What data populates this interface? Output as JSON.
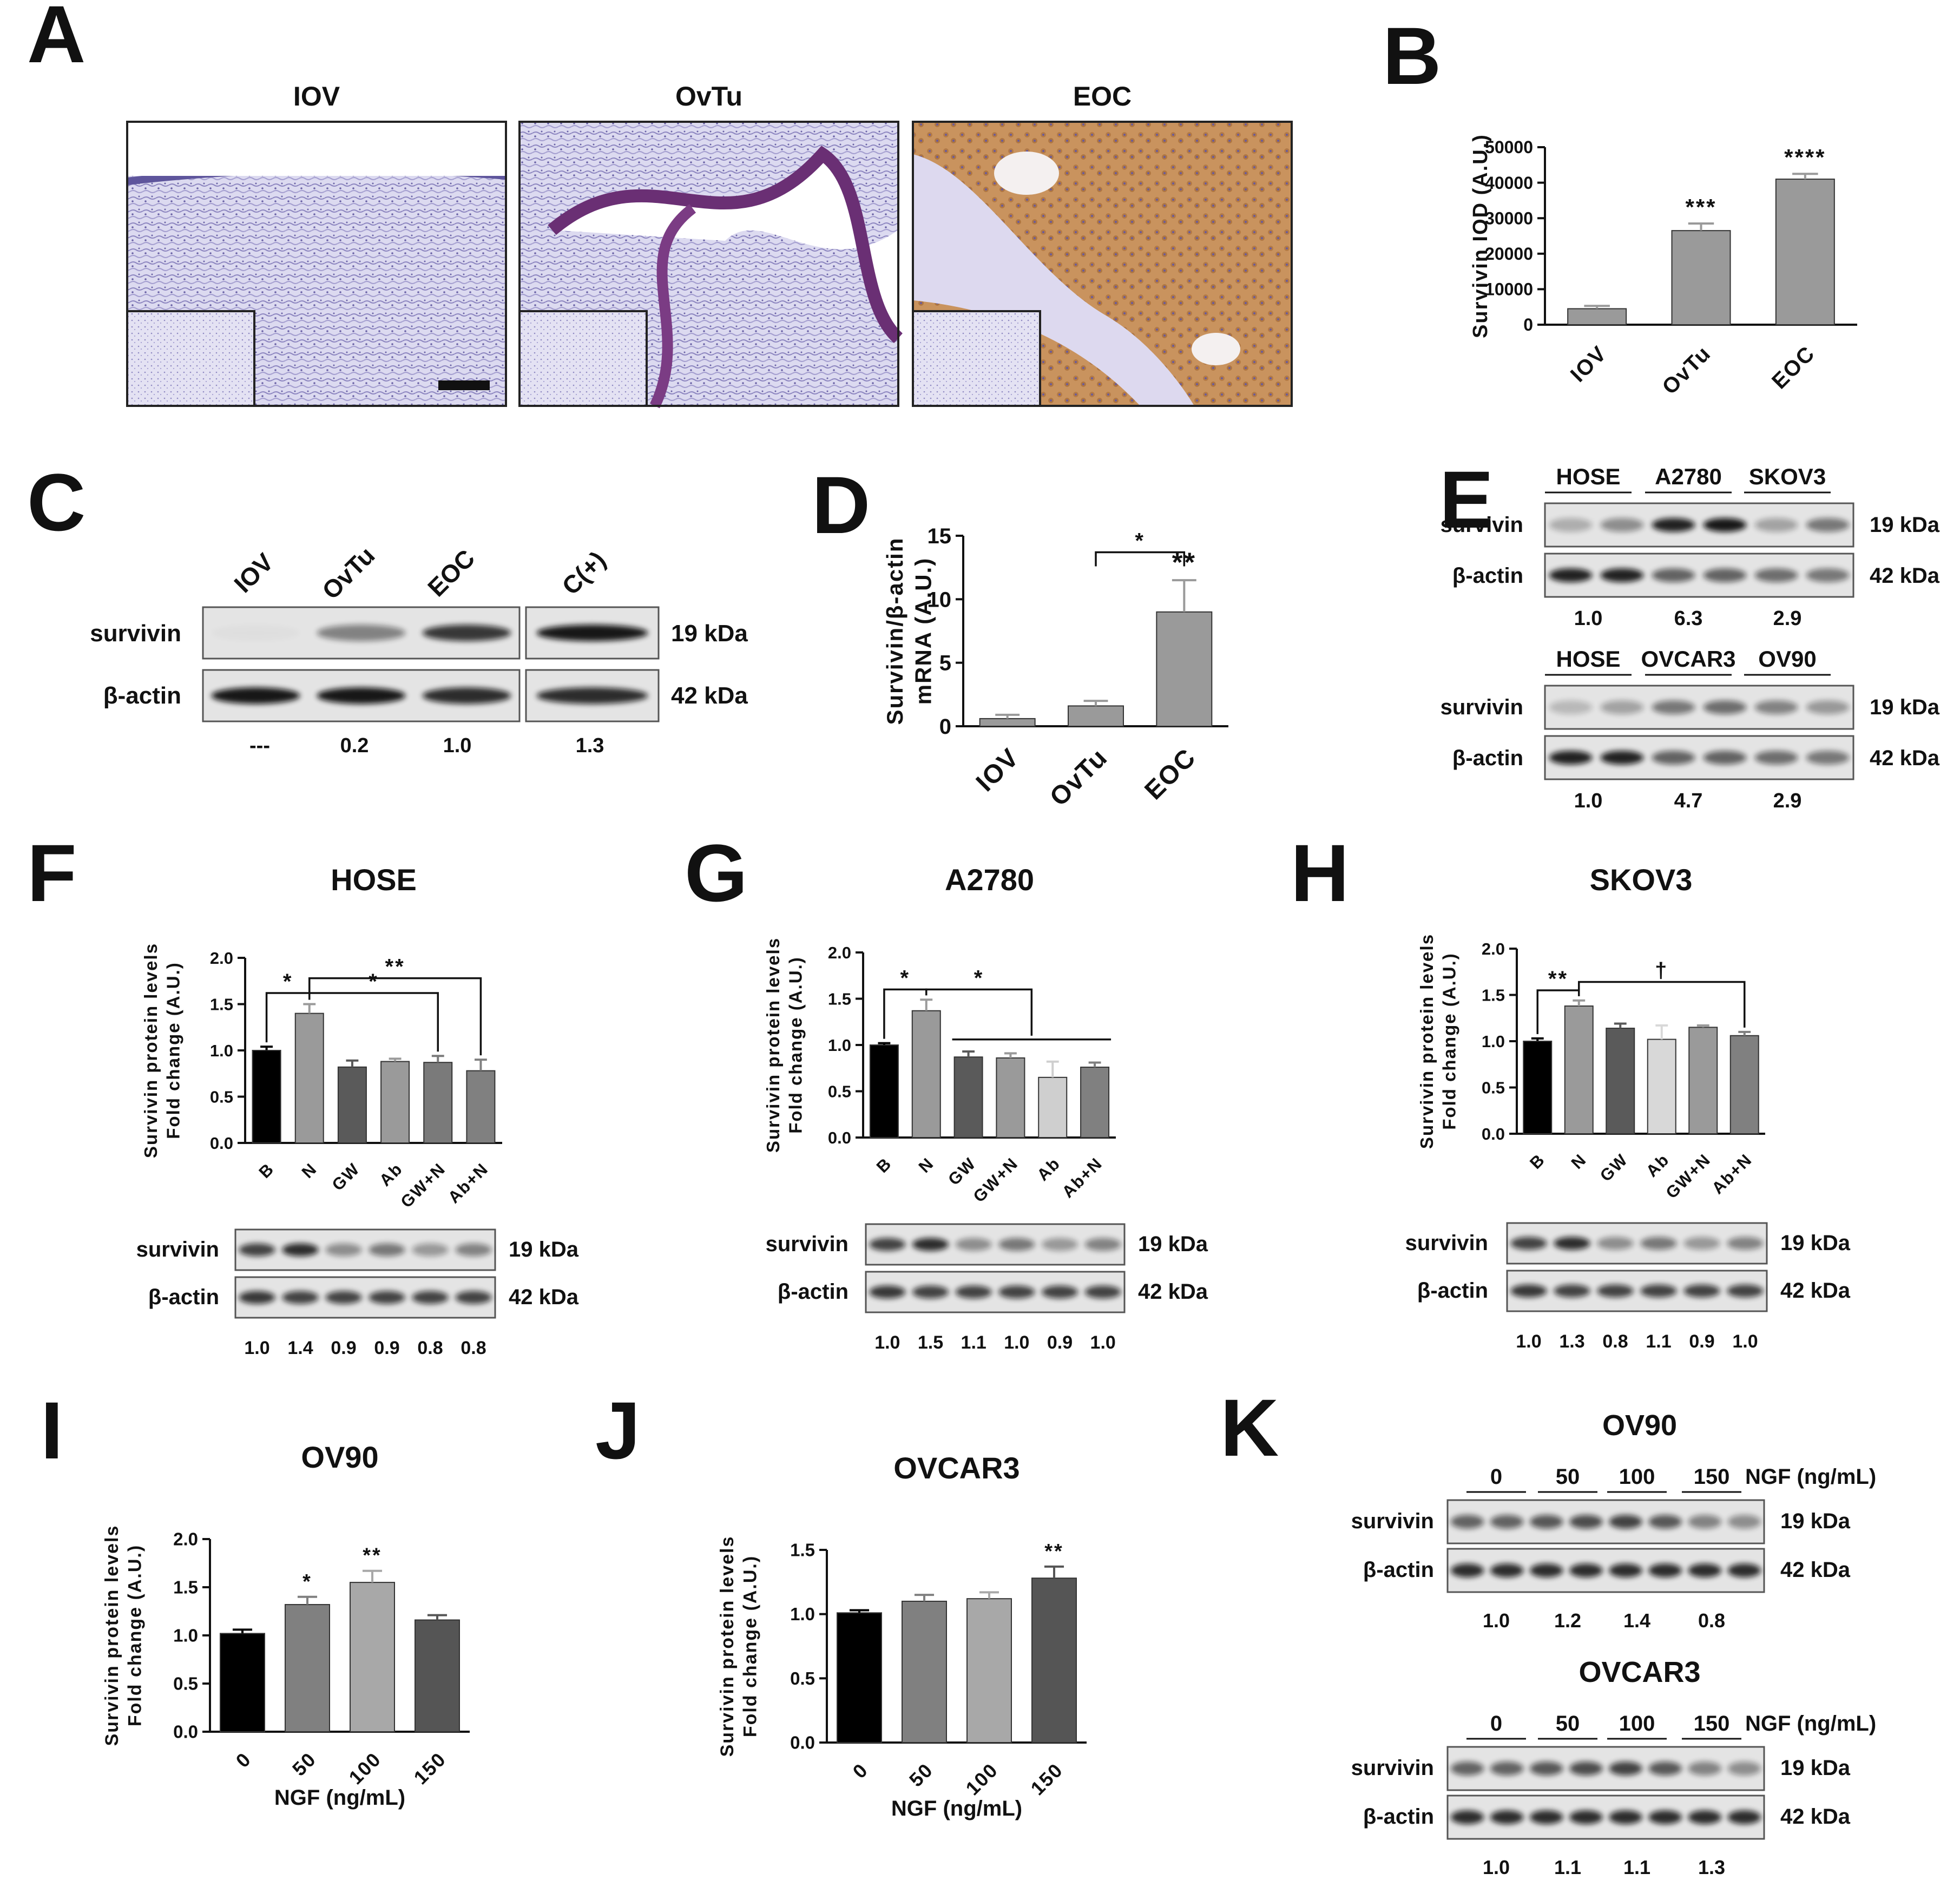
{
  "panel_letters": [
    "A",
    "B",
    "C",
    "D",
    "E",
    "F",
    "G",
    "H",
    "I",
    "J",
    "K"
  ],
  "histology": {
    "titles": [
      "IOV",
      "OvTu",
      "EOC"
    ],
    "colors": {
      "hematoxylin": "#6b5b9a",
      "dab": "#c58b52"
    }
  },
  "blots": {
    "C": {
      "lanes": [
        "IOV",
        "OvTu",
        "EOC",
        "C(+)"
      ],
      "quant": [
        "---",
        "0.2",
        "1.0",
        "1.3"
      ]
    },
    "E_top": {
      "groups": [
        "HOSE",
        "A2780",
        "SKOV3"
      ],
      "quant": [
        "1.0",
        "6.3",
        "2.9"
      ]
    },
    "E_bottom": {
      "groups": [
        "HOSE",
        "OVCAR3",
        "OV90"
      ],
      "quant": [
        "1.0",
        "4.7",
        "2.9"
      ]
    },
    "F": {
      "quant": [
        "1.0",
        "1.4",
        "0.9",
        "0.9",
        "0.8",
        "0.8"
      ]
    },
    "G": {
      "quant": [
        "1.0",
        "1.5",
        "1.1",
        "1.0",
        "0.9",
        "1.0"
      ]
    },
    "H": {
      "quant": [
        "1.0",
        "1.3",
        "0.8",
        "1.1",
        "0.9",
        "1.0"
      ]
    },
    "K_top": {
      "title": "OV90",
      "doses": [
        "0",
        "50",
        "100",
        "150"
      ],
      "quant": [
        "1.0",
        "1.2",
        "1.4",
        "0.8"
      ]
    },
    "K_bottom": {
      "title": "OVCAR3",
      "doses": [
        "0",
        "50",
        "100",
        "150"
      ],
      "quant": [
        "1.0",
        "1.1",
        "1.1",
        "1.3"
      ]
    },
    "labels": {
      "survivin": "survivin",
      "actin": "β-actin",
      "kda19": "19 kDa",
      "kda42": "42 kDa",
      "ngf": "NGF (ng/mL)"
    }
  },
  "chart_data": [
    {
      "panel": "B",
      "type": "bar",
      "categories": [
        "IOV",
        "OvTu",
        "EOC"
      ],
      "values": [
        4500,
        26500,
        41000
      ],
      "errors": [
        800,
        2000,
        1500
      ],
      "ylabel": "Survivin IOD (A.U.)",
      "ylim": [
        0,
        50000
      ],
      "yticks": [
        0,
        10000,
        20000,
        30000,
        40000,
        50000
      ],
      "significance": [
        "",
        "***",
        "****"
      ],
      "colors": [
        "#9a9a9a",
        "#9a9a9a",
        "#9a9a9a"
      ]
    },
    {
      "panel": "D",
      "type": "bar",
      "categories": [
        "IOV",
        "OvTu",
        "EOC"
      ],
      "values": [
        0.6,
        1.6,
        9.0
      ],
      "errors": [
        0.3,
        0.4,
        2.5
      ],
      "ylabel": [
        "Survivin/β-actin",
        "mRNA (A.U.)"
      ],
      "ylim": [
        0,
        15
      ],
      "yticks": [
        0,
        5,
        10,
        15
      ],
      "significance": [
        "",
        "",
        "**"
      ],
      "brackets": [
        {
          "from": 1,
          "to": 2,
          "label": "*"
        }
      ],
      "colors": [
        "#9a9a9a",
        "#9a9a9a",
        "#9a9a9a"
      ]
    },
    {
      "panel": "F",
      "type": "bar",
      "title": "HOSE",
      "categories": [
        "B",
        "N",
        "GW",
        "Ab",
        "GW+N",
        "Ab+N"
      ],
      "values": [
        1.0,
        1.4,
        0.82,
        0.88,
        0.87,
        0.78
      ],
      "errors": [
        0.04,
        0.1,
        0.07,
        0.03,
        0.07,
        0.12
      ],
      "ylabel": [
        "Survivin protein levels",
        "Fold change (A.U.)"
      ],
      "ylim": [
        0,
        2.0
      ],
      "yticks": [
        0.0,
        0.5,
        1.0,
        1.5,
        2.0
      ],
      "significance": [
        "",
        "",
        "",
        "",
        "",
        ""
      ],
      "brackets": [
        {
          "from": 0,
          "to": 1,
          "label": "*"
        },
        {
          "from": 1,
          "to": 4,
          "label": "*"
        },
        {
          "from": 1,
          "to": 5,
          "label": "**"
        }
      ],
      "colors": [
        "#000000",
        "#9a9a9a",
        "#5a5a5a",
        "#9a9a9a",
        "#7a7a7a",
        "#808080"
      ]
    },
    {
      "panel": "G",
      "type": "bar",
      "title": "A2780",
      "categories": [
        "B",
        "N",
        "GW",
        "GW+N",
        "Ab",
        "Ab+N"
      ],
      "values": [
        1.0,
        1.37,
        0.87,
        0.86,
        0.65,
        0.76
      ],
      "errors": [
        0.02,
        0.12,
        0.06,
        0.05,
        0.17,
        0.05
      ],
      "ylabel": [
        "Survivin protein levels",
        "Fold change (A.U.)"
      ],
      "ylim": [
        0,
        2.0
      ],
      "yticks": [
        0.0,
        0.5,
        1.0,
        1.5,
        2.0
      ],
      "significance": [
        "",
        "",
        "",
        "",
        "",
        ""
      ],
      "brackets": [
        {
          "from": 0,
          "to": 1,
          "label": "*"
        },
        {
          "from": 1,
          "to": 3.5,
          "label": "*"
        }
      ],
      "group_line": [
        2,
        5
      ],
      "colors": [
        "#000000",
        "#9a9a9a",
        "#5a5a5a",
        "#9a9a9a",
        "#cfcfcf",
        "#808080"
      ]
    },
    {
      "panel": "H",
      "type": "bar",
      "title": "SKOV3",
      "categories": [
        "B",
        "N",
        "GW",
        "Ab",
        "GW+N",
        "Ab+N"
      ],
      "values": [
        1.0,
        1.38,
        1.14,
        1.02,
        1.15,
        1.06
      ],
      "errors": [
        0.03,
        0.06,
        0.05,
        0.15,
        0.02,
        0.04
      ],
      "ylabel": [
        "Survivin protein levels",
        "Fold change (A.U.)"
      ],
      "ylim": [
        0,
        2.0
      ],
      "yticks": [
        0.0,
        0.5,
        1.0,
        1.5,
        2.0
      ],
      "significance": [
        "",
        "",
        "",
        "",
        "",
        ""
      ],
      "brackets": [
        {
          "from": 0,
          "to": 1,
          "label": "**"
        },
        {
          "from": 1,
          "to": 5,
          "label": "†"
        }
      ],
      "colors": [
        "#000000",
        "#9a9a9a",
        "#5a5a5a",
        "#d8d8d8",
        "#9a9a9a",
        "#808080"
      ]
    },
    {
      "panel": "I",
      "type": "bar",
      "title": "OV90",
      "categories": [
        "0",
        "50",
        "100",
        "150"
      ],
      "values": [
        1.02,
        1.32,
        1.55,
        1.16
      ],
      "errors": [
        0.04,
        0.08,
        0.12,
        0.05
      ],
      "ylabel": [
        "Survivin protein levels",
        "Fold change (A.U.)"
      ],
      "xlabel": "NGF (ng/mL)",
      "ylim": [
        0,
        2.0
      ],
      "yticks": [
        0.0,
        0.5,
        1.0,
        1.5,
        2.0
      ],
      "significance": [
        "",
        "*",
        "**",
        ""
      ],
      "colors": [
        "#000000",
        "#808080",
        "#a8a8a8",
        "#555555"
      ]
    },
    {
      "panel": "J",
      "type": "bar",
      "title": "OVCAR3",
      "categories": [
        "0",
        "50",
        "100",
        "150"
      ],
      "values": [
        1.01,
        1.1,
        1.12,
        1.28
      ],
      "errors": [
        0.02,
        0.05,
        0.05,
        0.09
      ],
      "ylabel": [
        "Survivin protein levels",
        "Fold change (A.U.)"
      ],
      "xlabel": "NGF (ng/mL)",
      "ylim": [
        0,
        1.5
      ],
      "yticks": [
        0.0,
        0.5,
        1.0,
        1.5
      ],
      "significance": [
        "",
        "",
        "",
        "**"
      ],
      "colors": [
        "#000000",
        "#808080",
        "#a8a8a8",
        "#555555"
      ]
    }
  ]
}
